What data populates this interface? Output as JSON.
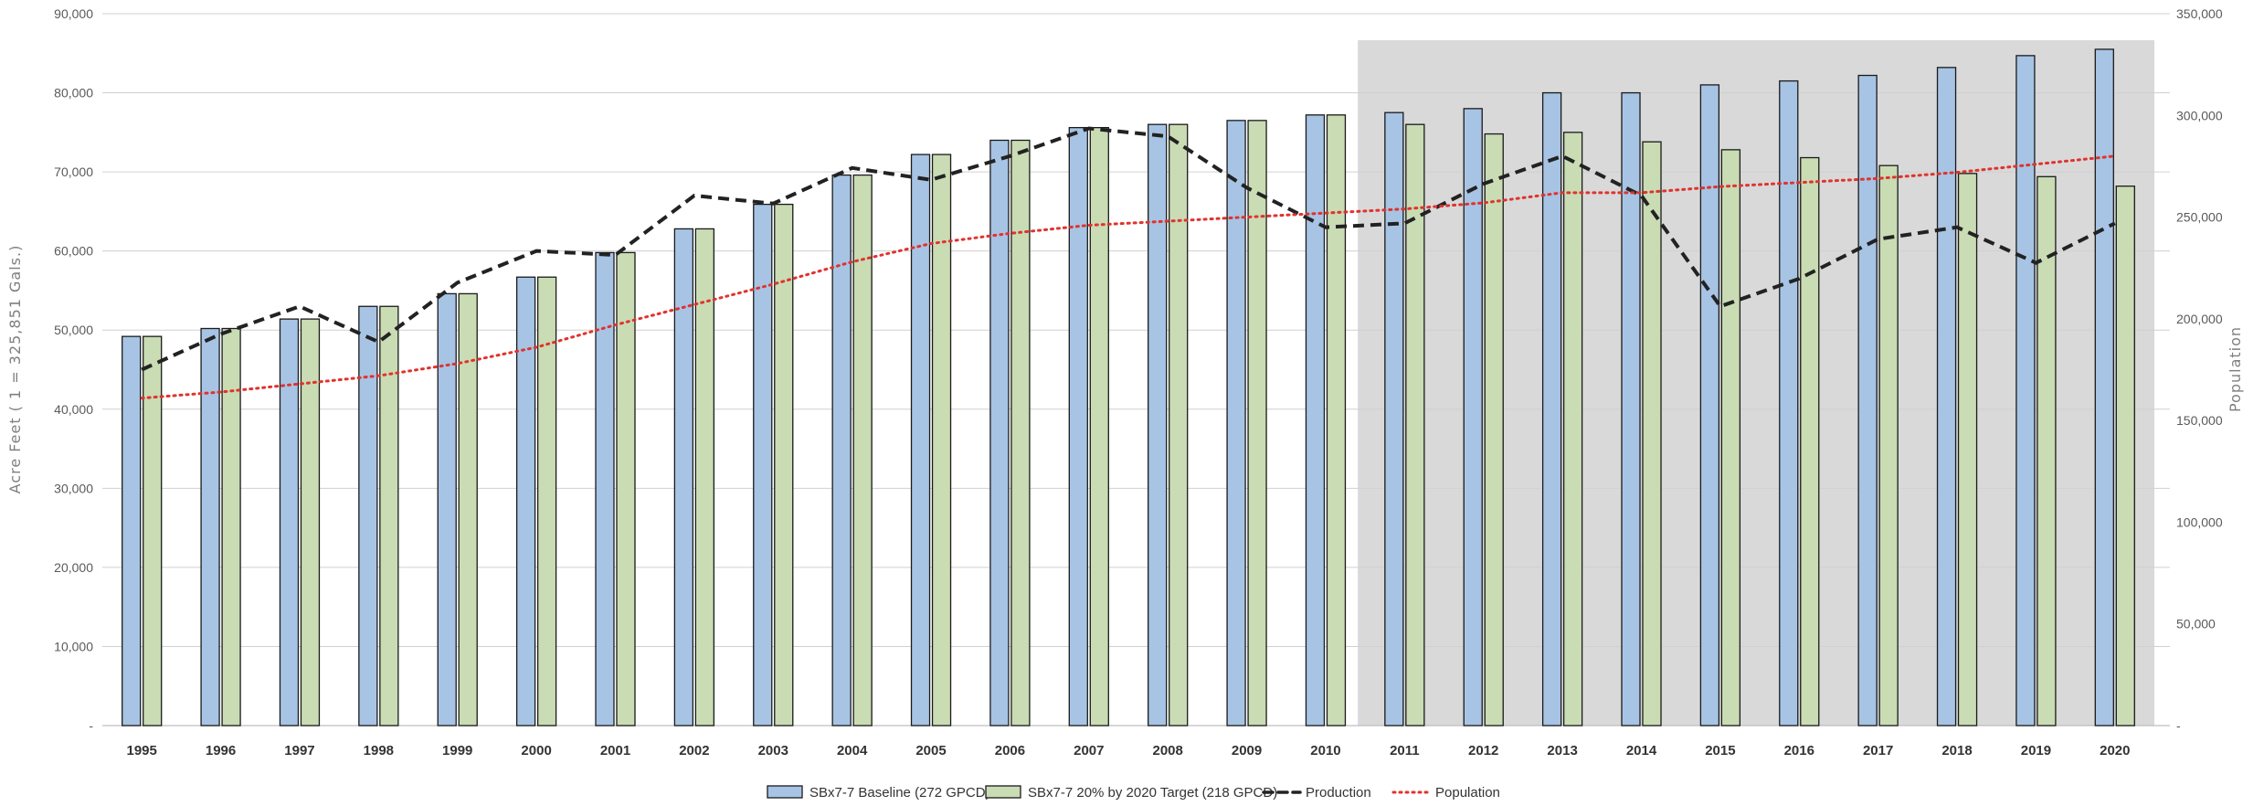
{
  "chart_data": {
    "type": "bar",
    "title": "",
    "xlabel": "",
    "ylabel": "Acre Feet ( 1 = 325,851 Gals.)",
    "y2label": "Population",
    "ylim": [
      0,
      90000
    ],
    "y2lim": [
      0,
      350000
    ],
    "y_ticks": [
      "-",
      "10,000",
      "20,000",
      "30,000",
      "40,000",
      "50,000",
      "60,000",
      "70,000",
      "80,000",
      "90,000"
    ],
    "y2_ticks": [
      "-",
      "50,000",
      "100,000",
      "150,000",
      "200,000",
      "250,000",
      "300,000",
      "350,000"
    ],
    "categories": [
      "1995",
      "1996",
      "1997",
      "1998",
      "1999",
      "2000",
      "2001",
      "2002",
      "2003",
      "2004",
      "2005",
      "2006",
      "2007",
      "2008",
      "2009",
      "2010",
      "2011",
      "2012",
      "2013",
      "2014",
      "2015",
      "2016",
      "2017",
      "2018",
      "2019",
      "2020"
    ],
    "shaded_region": {
      "from": "2011",
      "to": "2020"
    },
    "grid": true,
    "legend_position": "bottom",
    "series": [
      {
        "name": "SBx7-7 Baseline (272 GPCD)",
        "kind": "bar",
        "axis": "left",
        "color": "#a7c4e5",
        "values": [
          49200,
          50200,
          51400,
          53000,
          54600,
          56700,
          59800,
          62800,
          65900,
          69600,
          72200,
          74000,
          75600,
          76000,
          76500,
          77200,
          77500,
          78000,
          80000,
          80000,
          81000,
          81500,
          82200,
          83200,
          84700,
          85500
        ]
      },
      {
        "name": "SBx7-7 20% by 2020 Target (218 GPCD)",
        "kind": "bar",
        "axis": "left",
        "color": "#c9dcb4",
        "values": [
          49200,
          50200,
          51400,
          53000,
          54600,
          56700,
          59800,
          62800,
          65900,
          69600,
          72200,
          74000,
          75600,
          76000,
          76500,
          77200,
          76000,
          74800,
          75000,
          73800,
          72800,
          71800,
          70800,
          69800,
          69400,
          68200
        ]
      },
      {
        "name": "Production",
        "kind": "line",
        "axis": "left",
        "color": "#222222",
        "values": [
          45000,
          49500,
          53000,
          48500,
          56000,
          60000,
          59500,
          67000,
          66000,
          70500,
          69000,
          72000,
          75500,
          74500,
          68000,
          63000,
          63500,
          68500,
          72000,
          67000,
          53000,
          56500,
          61500,
          63000,
          58500,
          63500
        ]
      },
      {
        "name": "Population",
        "kind": "line",
        "axis": "right",
        "color": "#e0332e",
        "values": [
          161000,
          164000,
          168000,
          172000,
          178000,
          186000,
          197000,
          207000,
          217000,
          228000,
          237000,
          242000,
          246000,
          248000,
          250000,
          252000,
          254000,
          257000,
          262000,
          262000,
          265000,
          267000,
          269000,
          272000,
          276000,
          280000
        ]
      }
    ]
  }
}
